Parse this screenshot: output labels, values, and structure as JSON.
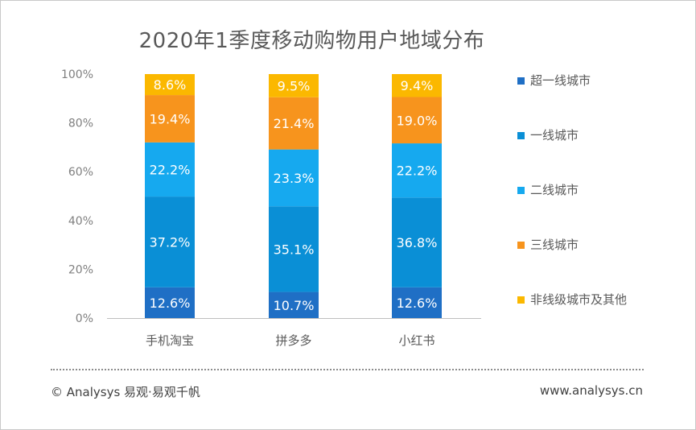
{
  "chart_data": {
    "type": "bar",
    "stacked": true,
    "title": "2020年1季度移动购物用户地域分布",
    "categories": [
      "手机淘宝",
      "拼多多",
      "小红书"
    ],
    "series": [
      {
        "name": "超一线城市",
        "color": "#1f6fc5",
        "values": [
          12.6,
          10.7,
          12.6
        ],
        "labels": [
          "12.6%",
          "10.7%",
          "12.6%"
        ]
      },
      {
        "name": "一线城市",
        "color": "#0a8fd6",
        "values": [
          37.2,
          35.1,
          36.8
        ],
        "labels": [
          "37.2%",
          "35.1%",
          "36.8%"
        ]
      },
      {
        "name": "二线城市",
        "color": "#16a9ef",
        "values": [
          22.2,
          23.3,
          22.2
        ],
        "labels": [
          "22.2%",
          "23.3%",
          "22.2%"
        ]
      },
      {
        "name": "三线城市",
        "color": "#f7941d",
        "values": [
          19.4,
          21.4,
          19.0
        ],
        "labels": [
          "19.4%",
          "21.4%",
          "19.0%"
        ]
      },
      {
        "name": "非线级城市及其他",
        "color": "#fbb800",
        "values": [
          8.6,
          9.5,
          9.4
        ],
        "labels": [
          "8.6%",
          "9.5%",
          "9.4%"
        ]
      }
    ],
    "ylim": [
      0,
      100
    ],
    "yticks": [
      0,
      20,
      40,
      60,
      80,
      100
    ],
    "ytick_labels": [
      "0%",
      "20%",
      "40%",
      "60%",
      "80%",
      "100%"
    ],
    "legend_position": "right",
    "grid": false
  },
  "footer": {
    "copyright": "© Analysys 易观·易观千帆",
    "website": "www.analysys.cn"
  }
}
